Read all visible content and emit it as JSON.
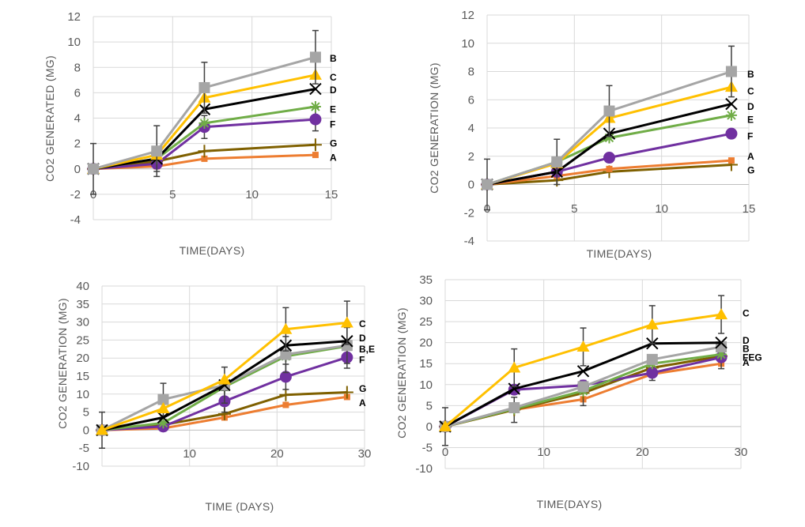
{
  "colors": {
    "A": "#ED7D31",
    "B": "#A5A5A5",
    "C": "#FFC000",
    "D": "#000000",
    "E": "#70AD47",
    "F": "#7030A0",
    "G": "#7F6000",
    "grid": "#D9D9D9",
    "text": "#595959",
    "errorbar": "#404040"
  },
  "chart_data": [
    {
      "type": "line",
      "xlabel": "TIME(DAYS)",
      "ylabel": "CO2 GENERATED (MG)",
      "xlim": [
        0,
        15
      ],
      "ylim": [
        -4,
        12
      ],
      "xticks": [
        0,
        5,
        10,
        15
      ],
      "yticks": [
        -4,
        -2,
        0,
        2,
        4,
        6,
        8,
        10,
        12
      ],
      "grid": true,
      "x": [
        0,
        4,
        7,
        14
      ],
      "series": [
        {
          "name": "B",
          "values": [
            0,
            1.4,
            6.4,
            8.8
          ],
          "error": [
            2.0,
            2.0,
            2.0,
            2.1
          ],
          "marker": "square"
        },
        {
          "name": "C",
          "values": [
            0,
            1.1,
            5.6,
            7.4
          ],
          "error": [
            0,
            0,
            0,
            0
          ],
          "marker": "triangle"
        },
        {
          "name": "D",
          "values": [
            0,
            0.8,
            4.7,
            6.3
          ],
          "error": [
            0,
            0,
            0,
            0
          ],
          "marker": "x"
        },
        {
          "name": "E",
          "values": [
            0,
            0.8,
            3.6,
            4.9
          ],
          "error": [
            0,
            0,
            0,
            0
          ],
          "marker": "star"
        },
        {
          "name": "F",
          "values": [
            0,
            0.4,
            3.3,
            3.9
          ],
          "error": [
            0,
            0.6,
            0.9,
            0.9
          ],
          "marker": "circle"
        },
        {
          "name": "G",
          "values": [
            0,
            0.6,
            1.4,
            1.9
          ],
          "error": [
            0,
            0,
            0,
            0
          ],
          "marker": "plus"
        },
        {
          "name": "A",
          "values": [
            0,
            0.2,
            0.8,
            1.1
          ],
          "error": [
            0,
            0,
            0,
            0
          ],
          "marker": "small"
        }
      ],
      "end_labels": [
        {
          "text": "B",
          "value": 8.7
        },
        {
          "text": "C",
          "value": 7.2
        },
        {
          "text": "D",
          "value": 6.2
        },
        {
          "text": "E",
          "value": 4.7
        },
        {
          "text": "F",
          "value": 3.5
        },
        {
          "text": "G",
          "value": 2.0
        },
        {
          "text": "A",
          "value": 0.9
        }
      ]
    },
    {
      "type": "line",
      "xlabel": "TIME(DAYS)",
      "ylabel": "CO2 GENERATION (MG)",
      "xlim": [
        0,
        15
      ],
      "ylim": [
        -4,
        12
      ],
      "xticks": [
        0,
        5,
        10,
        15
      ],
      "yticks": [
        -4,
        -2,
        0,
        2,
        4,
        6,
        8,
        10,
        12
      ],
      "grid": true,
      "x": [
        0,
        4,
        7,
        14
      ],
      "series": [
        {
          "name": "B",
          "values": [
            0,
            1.6,
            5.2,
            8.0
          ],
          "error": [
            1.8,
            1.6,
            1.8,
            1.8
          ],
          "marker": "square"
        },
        {
          "name": "C",
          "values": [
            0,
            1.5,
            4.7,
            6.9
          ],
          "error": [
            0,
            0,
            0,
            0
          ],
          "marker": "triangle"
        },
        {
          "name": "D",
          "values": [
            0,
            0.9,
            3.6,
            5.7
          ],
          "error": [
            0,
            0,
            0,
            0
          ],
          "marker": "x"
        },
        {
          "name": "E",
          "values": [
            0,
            1.6,
            3.3,
            4.9
          ],
          "error": [
            0,
            0,
            0,
            0
          ],
          "marker": "star"
        },
        {
          "name": "F",
          "values": [
            0,
            0.9,
            1.9,
            3.6
          ],
          "error": [
            0,
            0,
            0,
            0
          ],
          "marker": "circle"
        },
        {
          "name": "A",
          "values": [
            0,
            0.6,
            1.1,
            1.7
          ],
          "error": [
            0,
            0,
            0,
            0
          ],
          "marker": "small"
        },
        {
          "name": "G",
          "values": [
            0,
            0.3,
            0.9,
            1.4
          ],
          "error": [
            0,
            0,
            0,
            0
          ],
          "marker": "plus"
        }
      ],
      "end_labels": [
        {
          "text": "B",
          "value": 7.8
        },
        {
          "text": "C",
          "value": 6.6
        },
        {
          "text": "D",
          "value": 5.5
        },
        {
          "text": "E",
          "value": 4.6
        },
        {
          "text": "F",
          "value": 3.4
        },
        {
          "text": "A",
          "value": 2.0
        },
        {
          "text": "G",
          "value": 1.0
        }
      ]
    },
    {
      "type": "line",
      "xlabel": "TIME (DAYS)",
      "ylabel": "CO2 GENERATION (MG)",
      "xlim": [
        0,
        30
      ],
      "ylim": [
        -10,
        40
      ],
      "xticks": [
        10,
        20,
        30
      ],
      "yticks": [
        -10,
        -5,
        0,
        5,
        10,
        15,
        20,
        25,
        30,
        35,
        40
      ],
      "grid": true,
      "x": [
        0,
        7,
        14,
        21,
        28
      ],
      "series": [
        {
          "name": "C",
          "values": [
            0,
            6,
            14,
            28,
            29.8
          ],
          "error": [
            0,
            0,
            0,
            6,
            6
          ],
          "marker": "triangle"
        },
        {
          "name": "D",
          "values": [
            0,
            3.5,
            12.5,
            23.5,
            24.7
          ],
          "error": [
            0,
            0,
            0,
            0,
            0
          ],
          "marker": "x"
        },
        {
          "name": "B",
          "values": [
            0,
            8.5,
            12.5,
            21,
            23.5
          ],
          "error": [
            5,
            4.5,
            5,
            5,
            5
          ],
          "marker": "square"
        },
        {
          "name": "E",
          "values": [
            0,
            2,
            12,
            20.5,
            23.3
          ],
          "error": [
            0,
            0,
            0,
            0,
            0
          ],
          "marker": "star"
        },
        {
          "name": "F",
          "values": [
            0,
            1,
            8,
            14.8,
            20.2
          ],
          "error": [
            0,
            0,
            3,
            3.5,
            3
          ],
          "marker": "circle"
        },
        {
          "name": "G",
          "values": [
            0,
            1.5,
            4.5,
            9.8,
            10.5
          ],
          "error": [
            0,
            0,
            0,
            0,
            0
          ],
          "marker": "plus"
        },
        {
          "name": "A",
          "values": [
            0,
            0.5,
            3.5,
            7,
            9.2
          ],
          "error": [
            0,
            0,
            0,
            0,
            0
          ],
          "marker": "small"
        }
      ],
      "end_labels": [
        {
          "text": "C",
          "value": 29.5
        },
        {
          "text": "D",
          "value": 25.5
        },
        {
          "text": "B,E",
          "value": 22.5
        },
        {
          "text": "F",
          "value": 19.5
        },
        {
          "text": "G",
          "value": 11.5
        },
        {
          "text": "A",
          "value": 7.5
        }
      ]
    },
    {
      "type": "line",
      "xlabel": "TIME(DAYS)",
      "ylabel": "CO2 GENERATION (MG)",
      "xlim": [
        0,
        30
      ],
      "ylim": [
        -10,
        35
      ],
      "xticks": [
        0,
        10,
        20,
        30
      ],
      "yticks": [
        -10,
        -5,
        0,
        5,
        10,
        15,
        20,
        25,
        30,
        35
      ],
      "grid": true,
      "x": [
        0,
        7,
        14,
        21,
        28
      ],
      "series": [
        {
          "name": "C",
          "values": [
            0,
            14,
            19,
            24.3,
            26.7
          ],
          "error": [
            0,
            4.5,
            4.5,
            4.5,
            4.5
          ],
          "marker": "triangle"
        },
        {
          "name": "D",
          "values": [
            0,
            9,
            13.2,
            19.8,
            20
          ],
          "error": [
            0,
            0,
            0,
            0,
            0
          ],
          "marker": "x"
        },
        {
          "name": "B",
          "values": [
            0,
            4.5,
            9.5,
            16,
            19
          ],
          "error": [
            4.5,
            0,
            0,
            0,
            0
          ],
          "marker": "square"
        },
        {
          "name": "E",
          "values": [
            0,
            4.2,
            8.5,
            15,
            17.2
          ],
          "error": [
            0,
            0,
            0,
            0,
            0
          ],
          "marker": "star"
        },
        {
          "name": "F",
          "values": [
            0,
            8.8,
            9.8,
            12.8,
            16.5
          ],
          "error": [
            0,
            0,
            0,
            0,
            0
          ],
          "marker": "circle"
        },
        {
          "name": "G",
          "values": [
            0,
            4,
            8,
            14,
            16.8
          ],
          "error": [
            0,
            3,
            3,
            3,
            3
          ],
          "marker": "plus"
        },
        {
          "name": "A",
          "values": [
            0,
            4,
            6.5,
            12.5,
            15
          ],
          "error": [
            0,
            0,
            0,
            0,
            0
          ],
          "marker": "small"
        }
      ],
      "end_labels": [
        {
          "text": "C",
          "value": 27
        },
        {
          "text": "D",
          "value": 20.5
        },
        {
          "text": "B",
          "value": 18.5
        },
        {
          "text": "FEG",
          "value": 16.5
        },
        {
          "text": "A",
          "value": 15.2
        }
      ]
    }
  ]
}
